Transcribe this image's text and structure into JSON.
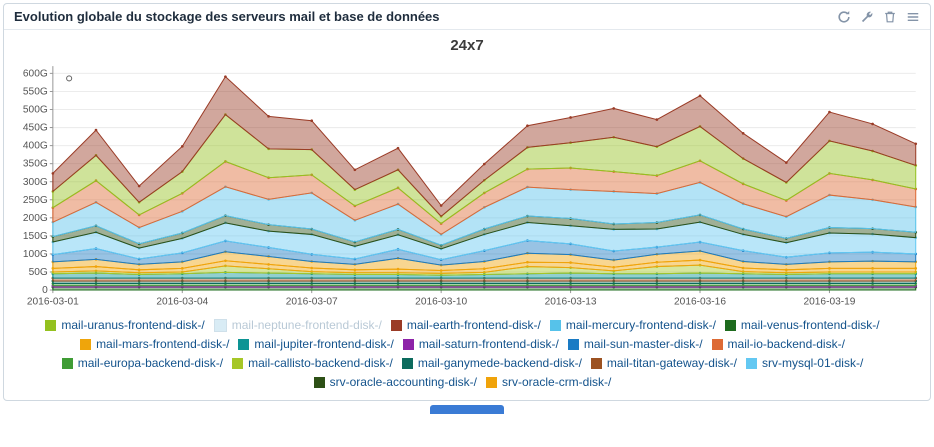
{
  "widget": {
    "title": "Evolution globale du stockage des serveurs mail et base de données",
    "toolbar": [
      "refresh-icon",
      "wrench-icon",
      "delete-icon",
      "menu-icon"
    ]
  },
  "colors": {
    "header_title": "#1f2d3d",
    "legend_text": "#14538c",
    "hidden_legend_text": "#b9c9d6",
    "icon": "#8494a8",
    "partial_button": "#3a7bd5"
  },
  "chart_data": {
    "type": "area",
    "stacked": true,
    "title": "24x7",
    "unit": "G",
    "grid": true,
    "legend_position": "bottom",
    "ylim": [
      0,
      620
    ],
    "y_tick_labels": [
      "0",
      "50G",
      "100G",
      "150G",
      "200G",
      "250G",
      "300G",
      "350G",
      "400G",
      "450G",
      "500G",
      "550G",
      "600G"
    ],
    "x": [
      "2016-03-01",
      "2016-03-02",
      "2016-03-03",
      "2016-03-04",
      "2016-03-05",
      "2016-03-06",
      "2016-03-07",
      "2016-03-08",
      "2016-03-09",
      "2016-03-10",
      "2016-03-11",
      "2016-03-12",
      "2016-03-13",
      "2016-03-14",
      "2016-03-15",
      "2016-03-16",
      "2016-03-17",
      "2016-03-18",
      "2016-03-19",
      "2016-03-20",
      "2016-03-21"
    ],
    "x_tick_labels": [
      "2016-03-01",
      "2016-03-04",
      "2016-03-07",
      "2016-03-10",
      "2016-03-13",
      "2016-03-16",
      "2016-03-19"
    ],
    "series": [
      {
        "name": "mail-uranus-frontend-disk-/",
        "color": "#94c11f",
        "values": [
          45,
          70,
          35,
          60,
          130,
          80,
          70,
          45,
          50,
          20,
          35,
          60,
          70,
          95,
          80,
          95,
          70,
          50,
          90,
          80,
          65
        ]
      },
      {
        "name": "mail-neptune-frontend-disk-/",
        "color": "#d9ecf5",
        "hidden": true,
        "values": [
          0,
          0,
          0,
          0,
          0,
          0,
          0,
          0,
          0,
          0,
          0,
          0,
          0,
          0,
          0,
          0,
          0,
          0,
          0,
          0,
          0
        ]
      },
      {
        "name": "mail-earth-frontend-disk-/",
        "color": "#9a3b26",
        "values": [
          50,
          70,
          45,
          70,
          105,
          90,
          80,
          55,
          60,
          30,
          45,
          60,
          70,
          80,
          75,
          85,
          70,
          55,
          80,
          75,
          60
        ]
      },
      {
        "name": "mail-mercury-frontend-disk-/",
        "color": "#56c2ea",
        "values": [
          40,
          65,
          45,
          60,
          80,
          70,
          100,
          60,
          70,
          30,
          60,
          80,
          80,
          90,
          80,
          90,
          70,
          60,
          90,
          80,
          70
        ]
      },
      {
        "name": "mail-venus-frontend-disk-/",
        "color": "#1e6b1e",
        "values": [
          8,
          8,
          8,
          8,
          8,
          8,
          8,
          8,
          8,
          8,
          8,
          8,
          8,
          8,
          8,
          8,
          8,
          8,
          8,
          8,
          8
        ]
      },
      {
        "name": "mail-mars-frontend-disk-/",
        "color": "#efa50b",
        "values": [
          10,
          12,
          8,
          10,
          14,
          12,
          10,
          8,
          10,
          8,
          10,
          12,
          14,
          10,
          12,
          14,
          10,
          8,
          10,
          10,
          10
        ]
      },
      {
        "name": "mail-jupiter-frontend-disk-/",
        "color": "#0d9494",
        "values": [
          12,
          14,
          10,
          12,
          16,
          14,
          12,
          10,
          10,
          8,
          10,
          12,
          14,
          12,
          12,
          14,
          12,
          10,
          12,
          12,
          12
        ]
      },
      {
        "name": "mail-saturn-frontend-disk-/",
        "color": "#8d23a8",
        "values": [
          4,
          4,
          4,
          4,
          4,
          4,
          4,
          4,
          4,
          4,
          4,
          4,
          4,
          4,
          4,
          4,
          4,
          4,
          4,
          4,
          4
        ]
      },
      {
        "name": "mail-sun-master-disk-/",
        "color": "#1a7bc4",
        "values": [
          20,
          30,
          15,
          25,
          30,
          25,
          20,
          15,
          25,
          15,
          30,
          35,
          30,
          25,
          20,
          25,
          30,
          20,
          25,
          25,
          22
        ]
      },
      {
        "name": "mail-io-backend-disk-/",
        "color": "#dd6a35",
        "values": [
          40,
          60,
          35,
          50,
          70,
          60,
          50,
          40,
          45,
          30,
          40,
          50,
          60,
          55,
          50,
          60,
          55,
          45,
          60,
          55,
          50
        ]
      },
      {
        "name": "mail-europa-backend-disk-/",
        "color": "#3f9c35",
        "values": [
          6,
          6,
          6,
          6,
          6,
          6,
          6,
          6,
          6,
          6,
          6,
          6,
          6,
          6,
          6,
          6,
          6,
          6,
          6,
          6,
          6
        ]
      },
      {
        "name": "mail-callisto-backend-disk-/",
        "color": "#a6c727",
        "values": [
          5,
          6,
          5,
          5,
          18,
          12,
          6,
          5,
          5,
          5,
          6,
          20,
          15,
          8,
          20,
          22,
          6,
          5,
          5,
          5,
          5
        ]
      },
      {
        "name": "mail-ganymede-backend-disk-/",
        "color": "#0c6b5d",
        "values": [
          7,
          7,
          7,
          7,
          7,
          7,
          7,
          7,
          7,
          7,
          7,
          7,
          7,
          7,
          7,
          7,
          7,
          7,
          7,
          7,
          7
        ]
      },
      {
        "name": "mail-titan-gateway-disk-/",
        "color": "#9c5221",
        "values": [
          8,
          8,
          8,
          8,
          8,
          8,
          8,
          8,
          8,
          8,
          8,
          8,
          8,
          8,
          8,
          8,
          8,
          8,
          8,
          8,
          8
        ]
      },
      {
        "name": "srv-mysql-01-disk-/",
        "color": "#63c8f2",
        "values": [
          35,
          45,
          30,
          40,
          50,
          45,
          55,
          35,
          40,
          30,
          45,
          50,
          50,
          60,
          50,
          55,
          45,
          40,
          55,
          50,
          45
        ]
      },
      {
        "name": "srv-oracle-accounting-disk-/",
        "color": "#2d5016",
        "values": [
          15,
          18,
          12,
          15,
          20,
          18,
          15,
          12,
          15,
          10,
          15,
          18,
          20,
          15,
          18,
          20,
          15,
          12,
          15,
          15,
          15
        ]
      },
      {
        "name": "srv-oracle-crm-disk-/",
        "color": "#f0a30a",
        "values": [
          18,
          20,
          15,
          18,
          25,
          22,
          18,
          15,
          30,
          15,
          20,
          25,
          22,
          20,
          22,
          25,
          18,
          15,
          18,
          20,
          18
        ]
      }
    ],
    "stack_order": [
      "mail-venus-frontend-disk-/",
      "mail-saturn-frontend-disk-/",
      "mail-europa-backend-disk-/",
      "mail-ganymede-backend-disk-/",
      "mail-titan-gateway-disk-/",
      "mail-jupiter-frontend-disk-/",
      "mail-callisto-backend-disk-/",
      "mail-mars-frontend-disk-/",
      "srv-oracle-crm-disk-/",
      "mail-sun-master-disk-/",
      "srv-mysql-01-disk-/",
      "srv-oracle-accounting-disk-/",
      "mail-mercury-frontend-disk-/",
      "mail-io-backend-disk-/",
      "mail-uranus-frontend-disk-/",
      "mail-earth-frontend-disk-/",
      "mail-neptune-frontend-disk-/"
    ]
  }
}
